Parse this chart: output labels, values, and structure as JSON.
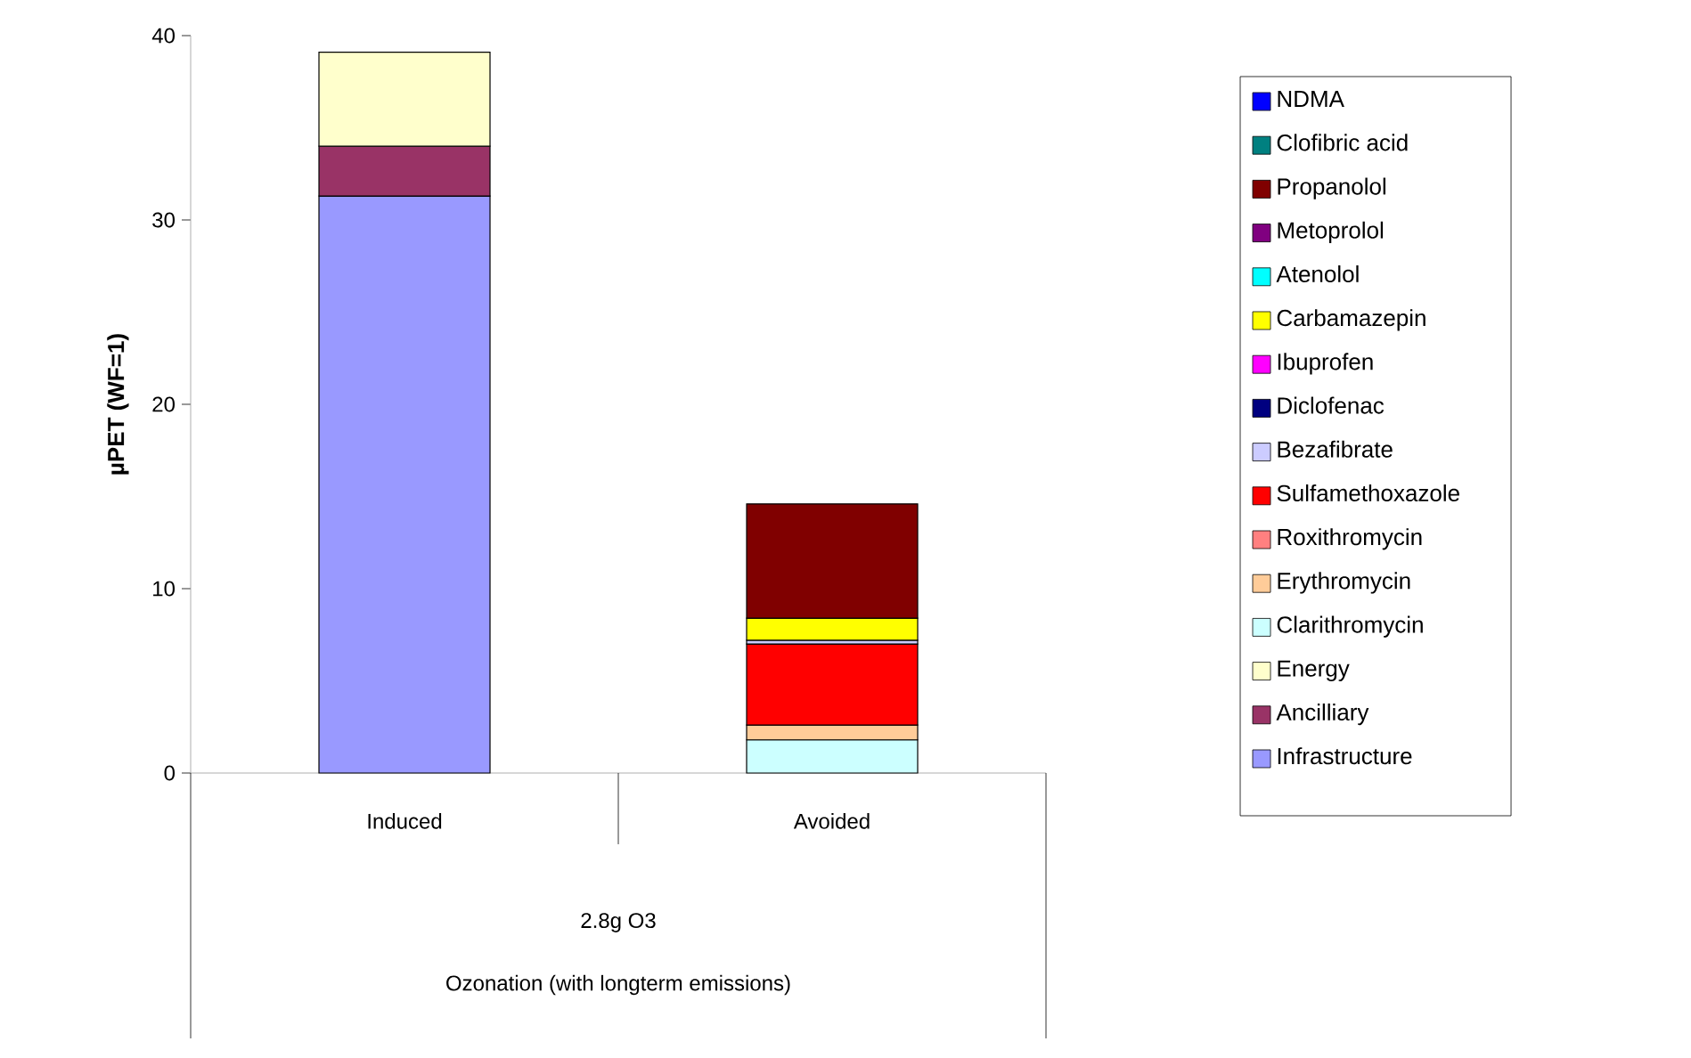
{
  "chart_data": {
    "type": "bar",
    "stacked": true,
    "categories": [
      "Induced",
      "Avoided"
    ],
    "ylabel": "µPET (WF=1)",
    "annotations": [
      "2.8g O3",
      "Ozonation (with longterm emissions)"
    ],
    "ylim": [
      0,
      40
    ],
    "yticks": [
      0,
      10,
      20,
      30,
      40
    ],
    "legend": "right",
    "series": [
      {
        "name": "Infrastructure",
        "color": "#9999ff",
        "values": [
          31.3,
          null
        ]
      },
      {
        "name": "Ancilliary",
        "color": "#993366",
        "values": [
          2.7,
          null
        ]
      },
      {
        "name": "Energy",
        "color": "#ffffcc",
        "values": [
          5.1,
          null
        ]
      },
      {
        "name": "Clarithromycin",
        "color": "#ccffff",
        "values": [
          null,
          1.8
        ]
      },
      {
        "name": "Erythromycin",
        "color": "#ffcc99",
        "values": [
          null,
          0.8
        ]
      },
      {
        "name": "Roxithromycin",
        "color": "#ff8080",
        "values": [
          null,
          null
        ]
      },
      {
        "name": "Sulfamethoxazole",
        "color": "#ff0000",
        "values": [
          null,
          4.4
        ]
      },
      {
        "name": "Bezafibrate",
        "color": "#ccccff",
        "values": [
          null,
          0.2
        ]
      },
      {
        "name": "Diclofenac",
        "color": "#000080",
        "values": [
          null,
          null
        ]
      },
      {
        "name": "Ibuprofen",
        "color": "#ff00ff",
        "values": [
          null,
          null
        ]
      },
      {
        "name": "Carbamazepin",
        "color": "#ffff00",
        "values": [
          null,
          1.2
        ]
      },
      {
        "name": "Atenolol",
        "color": "#00ffff",
        "values": [
          null,
          null
        ]
      },
      {
        "name": "Metoprolol",
        "color": "#800080",
        "values": [
          null,
          null
        ]
      },
      {
        "name": "Propanolol",
        "color": "#800000",
        "values": [
          null,
          6.2
        ]
      },
      {
        "name": "Clofibric acid",
        "color": "#008080",
        "values": [
          null,
          null
        ]
      },
      {
        "name": "NDMA",
        "color": "#0000ff",
        "values": [
          null,
          null
        ]
      }
    ]
  }
}
